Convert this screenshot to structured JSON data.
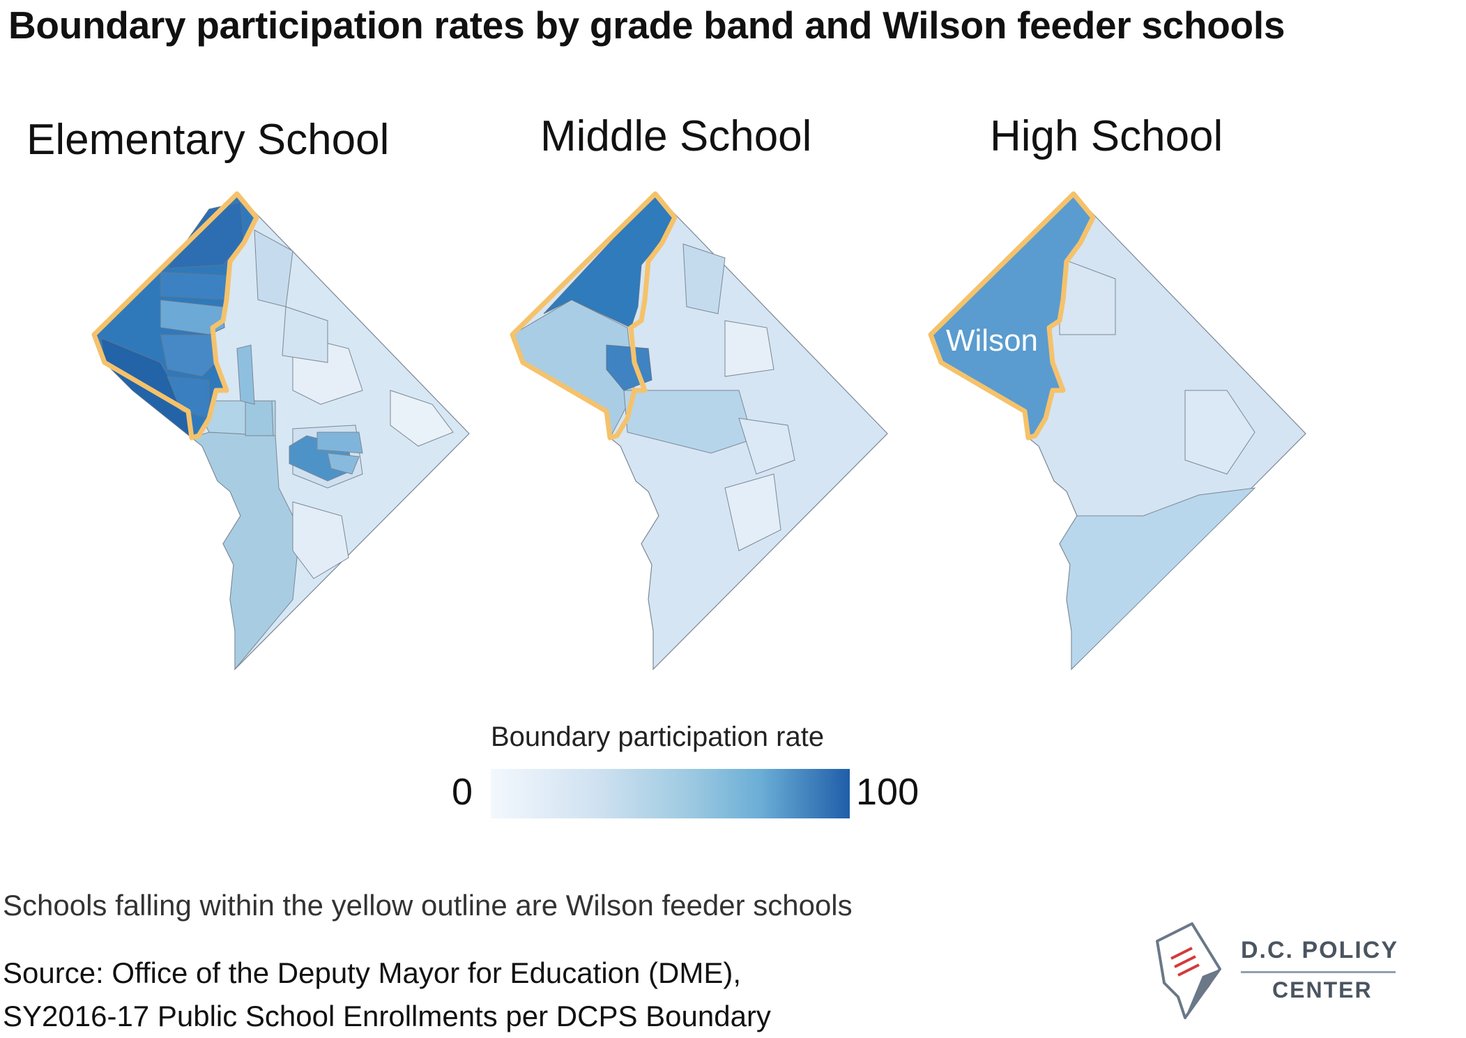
{
  "title": "Boundary participation rates by grade band and Wilson feeder schools",
  "panels": [
    {
      "title": "Elementary School"
    },
    {
      "title": "Middle School"
    },
    {
      "title": "High School",
      "region_label": "Wilson"
    }
  ],
  "legend": {
    "title": "Boundary participation rate",
    "min": "0",
    "max": "100",
    "colors": [
      "#f3f8fd",
      "#cfe1f1",
      "#9ecae1",
      "#6baed6",
      "#1f5ea9"
    ]
  },
  "feeder_outline_color": "#f5c26b",
  "note": "Schools falling within the yellow outline are Wilson feeder schools",
  "source": {
    "line1": "Source: Office of the Deputy Mayor for Education (DME),",
    "line2": "SY2016-17 Public School Enrollments per DCPS Boundary"
  },
  "logo": {
    "line1": "D.C. POLICY",
    "line2": "CENTER"
  }
}
